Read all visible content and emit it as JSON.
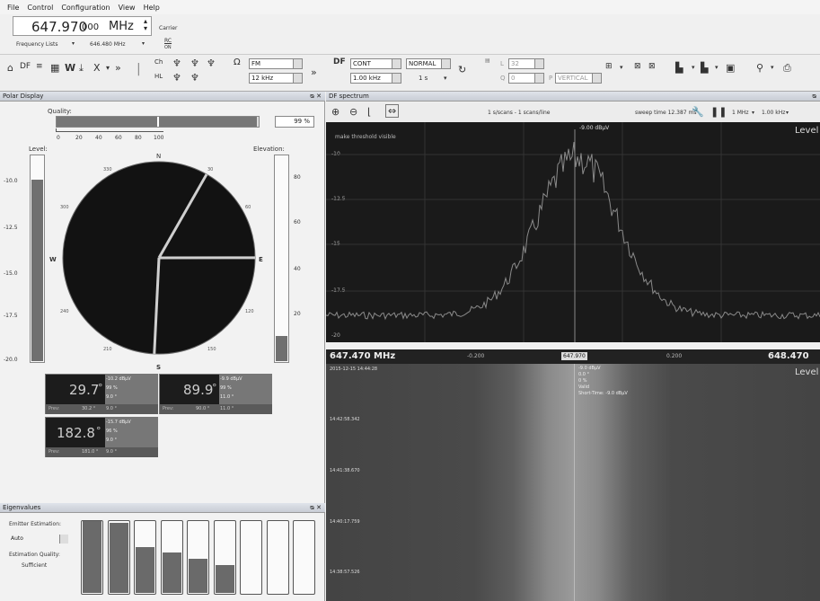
{
  "menu": [
    "File",
    "Control",
    "Configuration",
    "View",
    "Help"
  ],
  "frequency": {
    "main_value": "647.970",
    "main_suffix": "000",
    "unit": "MHz",
    "mode": "Carrier",
    "list_label": "Frequency Lists",
    "list_value": "646.480 MHz",
    "rc_label": "RC",
    "rc_sub": "ON"
  },
  "toolbar": {
    "demod": "FM",
    "demod_bw": "12 kHz",
    "df_label": "DF",
    "df_mode": "CONT",
    "df_bw": "1.00 kHz",
    "df_normal": "NORMAL",
    "df_time": "1 s",
    "l_label": "L",
    "l_value": "32",
    "q_label": "Q",
    "q_value": "0",
    "pol_label": "P",
    "pol_value": "VERTICAL"
  },
  "polar": {
    "title": "Polar Display",
    "quality_label": "Quality:",
    "quality_value": "99 %",
    "quality_fraction": 0.99,
    "quality_ticks": [
      "0",
      "20",
      "40",
      "60",
      "80",
      "100"
    ],
    "level_label": "Level:",
    "level_ticks": [
      "-10.0",
      "-12.5",
      "-15.0",
      "-17.5",
      "-20.0"
    ],
    "level_fraction": 0.88,
    "elevation_label": "Elevation:",
    "elevation_ticks": [
      "80",
      "60",
      "40",
      "20"
    ],
    "elevation_fraction": 0.12,
    "compass": {
      "n": "N",
      "e": "E",
      "s": "S",
      "w": "W"
    },
    "azimuth_ticks": [
      "330",
      "30",
      "60",
      "120",
      "150",
      "210",
      "240",
      "300"
    ],
    "bearings_deg": [
      29.7,
      89.9,
      182.8
    ]
  },
  "readouts": [
    {
      "value": "29.7",
      "unit": "°",
      "level": "-10.2 dBµV",
      "quality": "99 %",
      "elev": "9.0 °",
      "prev_label": "Prev:",
      "prev_az": "30.2 °",
      "prev_el": "9.0 °"
    },
    {
      "value": "89.9",
      "unit": "°",
      "level": "-9.9 dBµV",
      "quality": "99 %",
      "elev": "11.0 °",
      "prev_label": "Prev:",
      "prev_az": "90.0 °",
      "prev_el": "11.0 °"
    },
    {
      "value": "182.8",
      "unit": "°",
      "level": "-15.7 dBµV",
      "quality": "96 %",
      "elev": "9.0 °",
      "prev_label": "Prev:",
      "prev_az": "181.0 °",
      "prev_el": "9.0 °"
    }
  ],
  "eigen": {
    "title": "Eigenvalues",
    "emitter_label": "Emitter Estimation:",
    "emitter_value": "Auto",
    "quality_label": "Estimation Quality:",
    "quality_value": "Sufficient",
    "levels": [
      1.0,
      0.96,
      0.63,
      0.55,
      0.47,
      0.38,
      0.0,
      0.0,
      0.0
    ]
  },
  "spectrum": {
    "title": "DF spectrum",
    "scan_info": "1 s/scans - 1 scans/line",
    "sweep_label": "sweep time 12.387 ms",
    "span_value": "1 MHz",
    "step_value": "1.00 kHz",
    "threshold_label": "make threshold visible",
    "marker_label": "-9.00 dBµV",
    "level_label": "Level",
    "y_ticks": [
      "-10",
      "-12.5",
      "-15",
      "-17.5",
      "-20"
    ]
  },
  "freqaxis": {
    "left": "647.470 MHz",
    "tick_left": "-0.200",
    "center": "647.970",
    "tick_right": "0.200",
    "right": "648.470"
  },
  "waterfall": {
    "level_label": "Level",
    "timestamps": [
      "2015-12-15 14:44:28",
      "14:42:58.342",
      "14:41:38.670",
      "14:40:17.759",
      "14:38:57.526"
    ],
    "marker_lines": [
      "-9.0 dBµV",
      "0.0 °",
      "0 %",
      "Valid",
      "Short-Time: -9.0 dBµV"
    ]
  }
}
